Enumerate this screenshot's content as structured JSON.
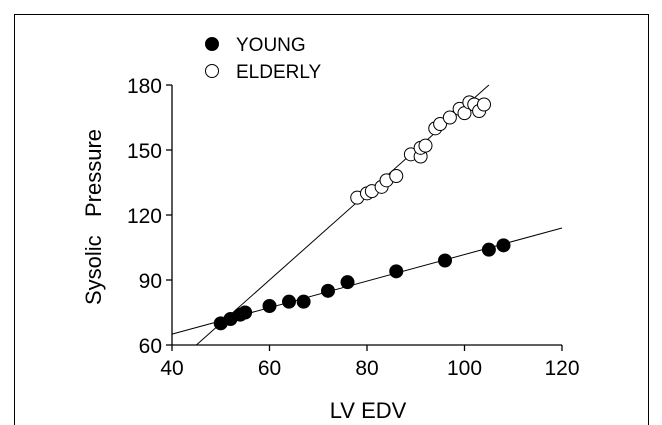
{
  "chart_data": {
    "type": "scatter",
    "title": "",
    "xlabel": "LV EDV",
    "ylabel": "Sysolic   Pressure",
    "xlim": [
      40,
      120
    ],
    "ylim": [
      60,
      180
    ],
    "x_ticks": [
      "40",
      "60",
      "80",
      "100",
      "120"
    ],
    "y_ticks": [
      "60",
      "90",
      "120",
      "150",
      "180"
    ],
    "grid": false,
    "legend_position": "top-left",
    "series": [
      {
        "name": "YOUNG",
        "marker": "filled-circle",
        "color": "#000000",
        "points": [
          [
            50,
            70
          ],
          [
            52,
            72
          ],
          [
            54,
            74
          ],
          [
            55,
            75
          ],
          [
            60,
            78
          ],
          [
            64,
            80
          ],
          [
            67,
            80
          ],
          [
            72,
            85
          ],
          [
            76,
            89
          ],
          [
            86,
            94
          ],
          [
            96,
            99
          ],
          [
            105,
            104
          ],
          [
            108,
            106
          ]
        ],
        "fit_line": {
          "x": [
            40,
            120
          ],
          "y": [
            65,
            114
          ]
        }
      },
      {
        "name": "ELDERLY",
        "marker": "open-circle",
        "color": "#000000",
        "points": [
          [
            78,
            128
          ],
          [
            80,
            130
          ],
          [
            81,
            131
          ],
          [
            83,
            133
          ],
          [
            84,
            136
          ],
          [
            86,
            138
          ],
          [
            89,
            148
          ],
          [
            91,
            147
          ],
          [
            91,
            151
          ],
          [
            92,
            152
          ],
          [
            94,
            160
          ],
          [
            95,
            162
          ],
          [
            97,
            165
          ],
          [
            99,
            169
          ],
          [
            100,
            167
          ],
          [
            101,
            172
          ],
          [
            102,
            171
          ],
          [
            103,
            168
          ],
          [
            104,
            171
          ]
        ],
        "fit_line": {
          "x": [
            45,
            105
          ],
          "y": [
            60,
            180
          ]
        }
      }
    ]
  }
}
